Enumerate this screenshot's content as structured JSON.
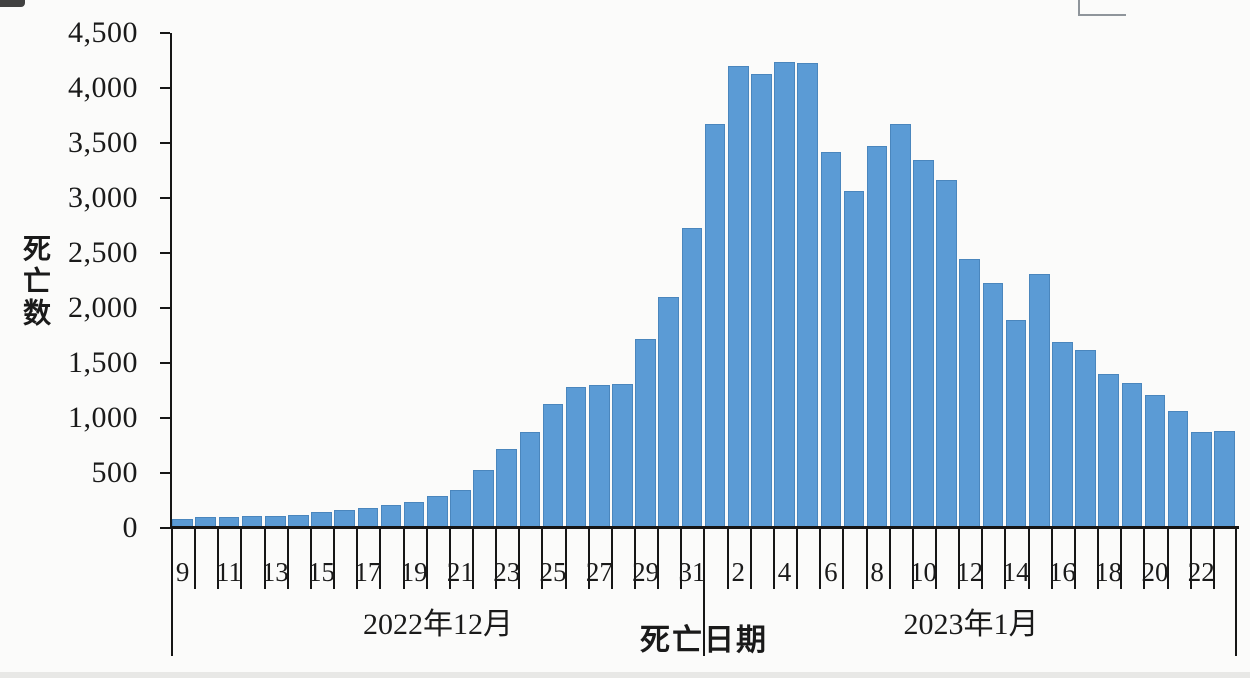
{
  "chart_data": {
    "type": "bar",
    "title": "",
    "ylabel": "死亡数",
    "xlabel": "死亡日期",
    "ylim": [
      0,
      4500
    ],
    "ytick_interval": 500,
    "ytick_labels": [
      "0",
      "500",
      "1,000",
      "1,500",
      "2,000",
      "2,500",
      "3,000",
      "3,500",
      "4,000",
      "4,500"
    ],
    "grid": "off",
    "legend_position": "none",
    "bar_color": "#5b9bd5",
    "bar_border_color": "#4a86bd",
    "axis_color": "#161616",
    "label_every_n_days": 2,
    "groups": [
      {
        "label": "2022年12月",
        "month": "2022-12",
        "days": [
          9,
          10,
          11,
          12,
          13,
          14,
          15,
          16,
          17,
          18,
          19,
          20,
          21,
          22,
          23,
          24,
          25,
          26,
          27,
          28,
          29,
          30,
          31
        ],
        "values": [
          80,
          100,
          100,
          110,
          110,
          115,
          150,
          165,
          180,
          210,
          240,
          290,
          350,
          530,
          715,
          870,
          1130,
          1280,
          1300,
          1310,
          1720,
          2100,
          2730
        ]
      },
      {
        "label": "2023年1月",
        "month": "2023-01",
        "days": [
          1,
          2,
          3,
          4,
          5,
          6,
          7,
          8,
          9,
          10,
          11,
          12,
          13,
          14,
          15,
          16,
          17,
          18,
          19,
          20,
          21,
          22,
          23
        ],
        "values": [
          3670,
          4200,
          4130,
          4240,
          4230,
          3420,
          3060,
          3470,
          3670,
          3350,
          3160,
          2450,
          2230,
          1890,
          2310,
          1690,
          1620,
          1400,
          1320,
          1210,
          1060,
          870,
          880
        ]
      }
    ],
    "visible_x_tick_labels": [
      "9",
      "11",
      "13",
      "15",
      "17",
      "19",
      "21",
      "23",
      "25",
      "27",
      "29",
      "31",
      "2",
      "4",
      "6",
      "8",
      "10",
      "12",
      "14",
      "16",
      "18",
      "20",
      "22"
    ]
  }
}
